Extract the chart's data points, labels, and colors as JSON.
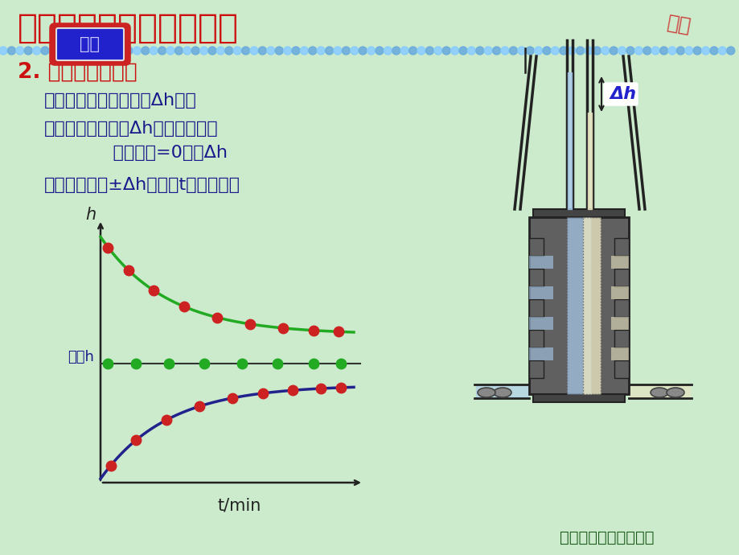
{
  "bg_color": "#cceacc",
  "title": "一．大分子溶液的渗透压",
  "title_color": "#cc1111",
  "title_fontsize": 30,
  "subtitle": "2. 渗透压测定方法",
  "subtitle_color": "#cc1111",
  "subtitle_fontsize": 19,
  "text_lines": [
    "渗透平衡法：由平衡时Δh计算",
    "速率终点法：初始Δh～速率作图，",
    "            外推速率=0时的Δh",
    "升降中点法：±Δh～时间t作图的中点"
  ],
  "text_color": "#1a1a8c",
  "text_fontsize": 16,
  "graph_xlabel": "t/min",
  "graph_ylabel": "h",
  "equilibrium_label": "平衡h",
  "footer_text": "药学院物理化学教研室",
  "footer_color": "#1a5c1a",
  "back_button_text": "返回",
  "back_button_text_color": "#ccccff",
  "back_button_bg": "#2222cc",
  "back_button_border_outer": "#cc2222",
  "back_button_border_inner": "#cccccc",
  "dot_color_green": "#22aa22",
  "dot_color_red": "#cc2222",
  "line_color_green": "#22aa22",
  "line_color_blue": "#22228c",
  "equilibrium_line_color": "#333333",
  "axis_color": "#222222",
  "header_bg": "#cceacc",
  "deco_dot_colors": [
    "#88ccff",
    "#66aadd"
  ],
  "delta_h_label": "Δh",
  "delta_h_color": "#2222cc"
}
